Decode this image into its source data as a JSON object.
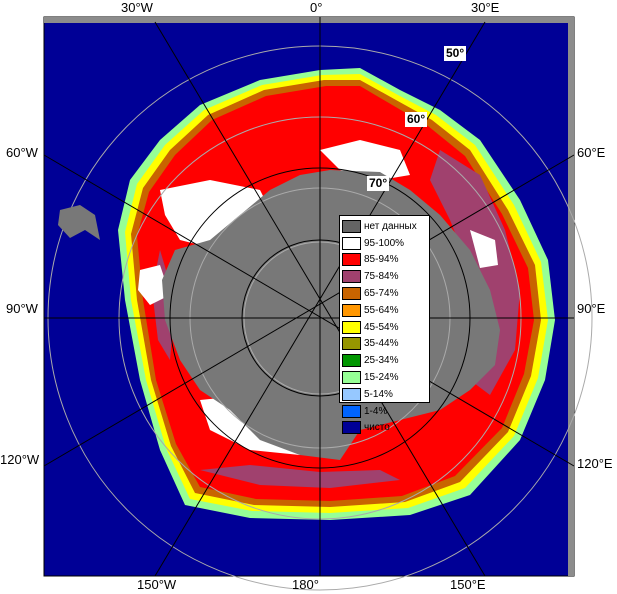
{
  "longitude_labels": {
    "top_30w": "30°W",
    "top_0": "0°",
    "top_30e": "30°E",
    "left_60w": "60°W",
    "right_60e": "60°E",
    "left_90w": "90°W",
    "right_90e": "90°E",
    "left_120w": "120°W",
    "right_120e": "120°E",
    "bottom_150w": "150°W",
    "bottom_180": "180°",
    "bottom_150e": "150°E"
  },
  "latitude_labels": {
    "lat50": "50°",
    "lat60": "60°",
    "lat70": "70°"
  },
  "legend": [
    {
      "label": "нет данных",
      "color": "#646464"
    },
    {
      "label": "95-100%",
      "color": "#ffffff"
    },
    {
      "label": "85-94%",
      "color": "#ff0000"
    },
    {
      "label": "75-84%",
      "color": "#a0416e"
    },
    {
      "label": "65-74%",
      "color": "#c86400"
    },
    {
      "label": "55-64%",
      "color": "#ff9600"
    },
    {
      "label": "45-54%",
      "color": "#ffff00"
    },
    {
      "label": "35-44%",
      "color": "#969600"
    },
    {
      "label": "25-34%",
      "color": "#009600"
    },
    {
      "label": "15-24%",
      "color": "#96ff96"
    },
    {
      "label": "5-14%",
      "color": "#96c8ff"
    },
    {
      "label": "1-4%",
      "color": "#0064ff"
    },
    {
      "label": "чисто",
      "color": "#000096"
    }
  ],
  "colors": {
    "ocean": "#000096",
    "land": "#787878",
    "no_data": "#646464",
    "frame": "#8c8c8c",
    "grid": "#aaaaaa"
  }
}
